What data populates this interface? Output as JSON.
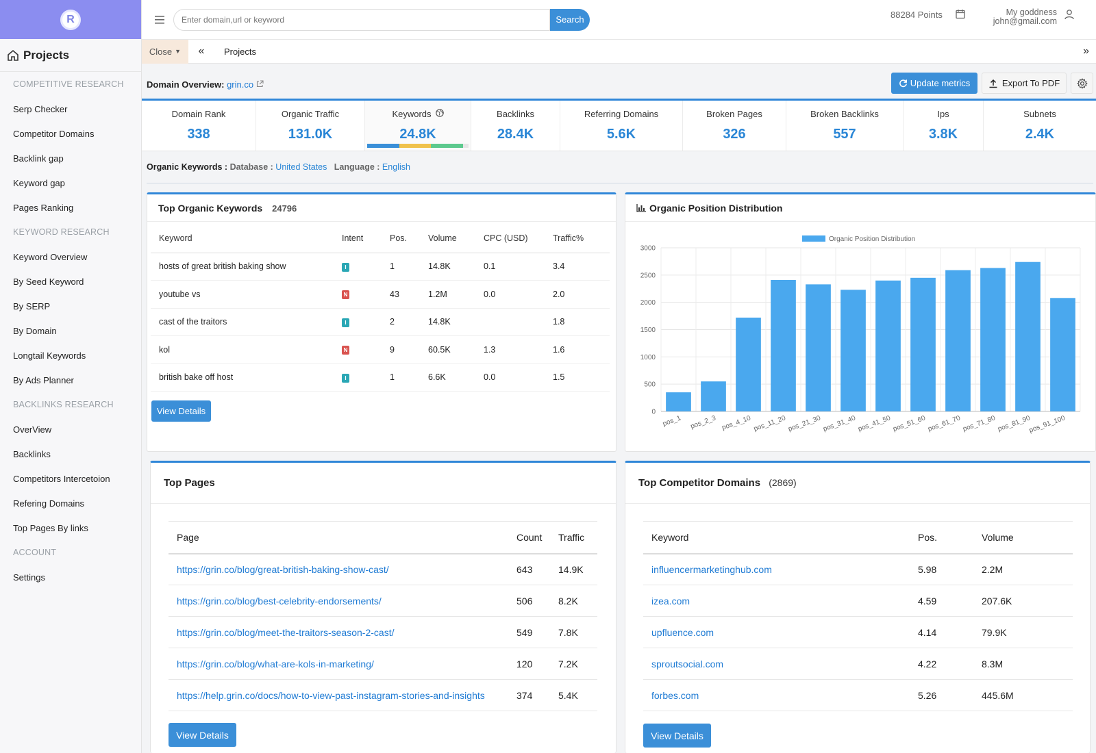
{
  "brand": {
    "logo_letter": "R",
    "accent": "#8b8df0",
    "primary": "#2f86d8"
  },
  "sidebar": {
    "title": "Projects",
    "sections": [
      {
        "header": "COMPETITIVE RESEARCH",
        "items": [
          "Serp Checker",
          "Competitor Domains",
          "Backlink gap",
          "Keyword gap",
          "Pages Ranking"
        ]
      },
      {
        "header": "KEYWORD RESEARCH",
        "items": [
          "Keyword Overview",
          "By Seed Keyword",
          "By SERP",
          "By Domain",
          "Longtail Keywords",
          "By Ads Planner"
        ]
      },
      {
        "header": "BACKLINKS RESEARCH",
        "items": [
          "OverView",
          "Backlinks",
          "Competitors Intercetoion",
          "Refering Domains",
          "Top Pages By links"
        ]
      },
      {
        "header": "ACCOUNT",
        "items": [
          "Settings"
        ]
      }
    ]
  },
  "topbar": {
    "search_placeholder": "Enter domain,url or keyword",
    "search_button": "Search",
    "points": "88284 Points",
    "user_name": "My goddness",
    "user_email": "john@gmail.com"
  },
  "tabs": {
    "close_label": "Close",
    "current": "Projects"
  },
  "overview": {
    "label": "Domain Overview:",
    "domain": "grin.co",
    "update_button": "Update metrics",
    "export_button": "Export To PDF"
  },
  "metrics": [
    {
      "label": "Domain Rank",
      "value": "338"
    },
    {
      "label": "Organic Traffic",
      "value": "131.0K"
    },
    {
      "label": "Keywords",
      "value": "24.8K"
    },
    {
      "label": "Backlinks",
      "value": "28.4K"
    },
    {
      "label": "Referring Domains",
      "value": "5.6K"
    },
    {
      "label": "Broken Pages",
      "value": "326"
    },
    {
      "label": "Broken Backlinks",
      "value": "557"
    },
    {
      "label": "Ips",
      "value": "3.8K"
    },
    {
      "label": "Subnets",
      "value": "2.4K"
    }
  ],
  "keyword_bar_colors": [
    "#3a8fd8",
    "#f0c24b",
    "#5cc98d"
  ],
  "organic": {
    "label": "Organic Keywords :",
    "db_label": "Database :",
    "db_value": "United States",
    "lang_label": "Language :",
    "lang_value": "English"
  },
  "top_keywords": {
    "title": "Top Organic Keywords",
    "count": "24796",
    "columns": [
      "Keyword",
      "Intent",
      "Pos.",
      "Volume",
      "CPC (USD)",
      "Traffic%"
    ],
    "rows": [
      [
        "hosts of great british baking show",
        "I",
        "1",
        "14.8K",
        "0.1",
        "3.4"
      ],
      [
        "youtube vs",
        "N",
        "43",
        "1.2M",
        "0.0",
        "2.0"
      ],
      [
        "cast of the traitors",
        "I",
        "2",
        "14.8K",
        "",
        "1.8"
      ],
      [
        "kol",
        "N",
        "9",
        "60.5K",
        "1.3",
        "1.6"
      ],
      [
        "british bake off host",
        "I",
        "1",
        "6.6K",
        "0.0",
        "1.5"
      ]
    ],
    "view_button": "View Details"
  },
  "distribution": {
    "title": "Organic Position Distribution"
  },
  "chart_data": {
    "type": "bar",
    "title": "",
    "legend": "Organic Position Distribution",
    "legend_position": "top-center",
    "categories": [
      "pos_1",
      "pos_2_3",
      "pos_4_10",
      "pos_11_20",
      "pos_21_30",
      "pos_31_40",
      "pos_41_50",
      "pos_51_60",
      "pos_61_70",
      "pos_71_80",
      "pos_81_90",
      "pos_91_100"
    ],
    "series": [
      {
        "name": "Organic Position Distribution",
        "values": [
          350,
          550,
          1720,
          2410,
          2330,
          2230,
          2400,
          2450,
          2590,
          2630,
          2740,
          2080
        ]
      }
    ],
    "ylim": [
      0,
      3000
    ],
    "yticks": [
      "0",
      "500",
      "1000",
      "1500",
      "2000",
      "2500",
      "3000"
    ],
    "grid": true,
    "bar_color": "#4aa8ee"
  },
  "top_pages": {
    "title": "Top Pages",
    "columns": [
      "Page",
      "Count",
      "Traffic"
    ],
    "rows": [
      [
        "https://grin.co/blog/great-british-baking-show-cast/",
        "643",
        "14.9K"
      ],
      [
        "https://grin.co/blog/best-celebrity-endorsements/",
        "506",
        "8.2K"
      ],
      [
        "https://grin.co/blog/meet-the-traitors-season-2-cast/",
        "549",
        "7.8K"
      ],
      [
        "https://grin.co/blog/what-are-kols-in-marketing/",
        "120",
        "7.2K"
      ],
      [
        "https://help.grin.co/docs/how-to-view-past-instagram-stories-and-insights",
        "374",
        "5.4K"
      ]
    ],
    "view_button": "View Details"
  },
  "competitors": {
    "title": "Top Competitor Domains",
    "count": "(2869)",
    "columns": [
      "Keyword",
      "Pos.",
      "Volume"
    ],
    "rows": [
      [
        "influencermarketinghub.com",
        "5.98",
        "2.2M"
      ],
      [
        "izea.com",
        "4.59",
        "207.6K"
      ],
      [
        "upfluence.com",
        "4.14",
        "79.9K"
      ],
      [
        "sproutsocial.com",
        "4.22",
        "8.3M"
      ],
      [
        "forbes.com",
        "5.26",
        "445.6M"
      ]
    ],
    "view_button": "View Details"
  }
}
